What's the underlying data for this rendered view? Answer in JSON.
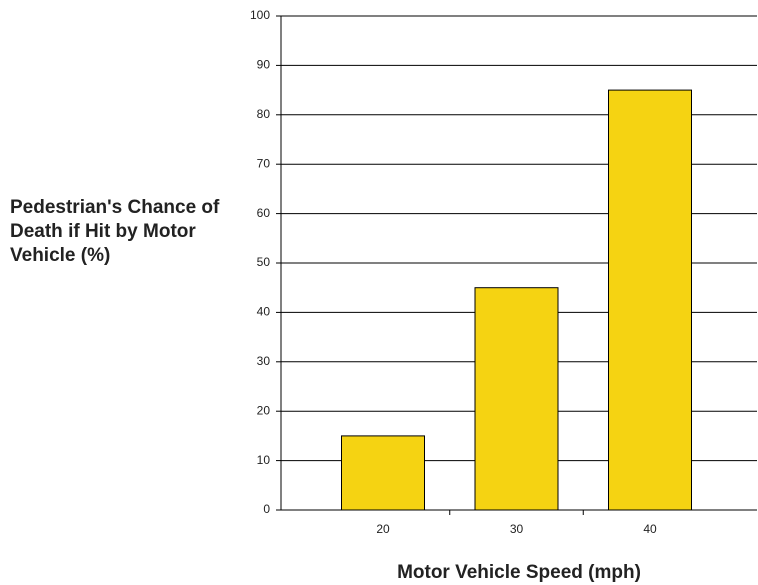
{
  "chart_data": {
    "type": "bar",
    "y_label": "Pedestrian's Chance of Death if Hit by Motor Vehicle (%)",
    "x_label": "Motor Vehicle Speed (mph)",
    "categories": [
      "20",
      "30",
      "40"
    ],
    "values": [
      15,
      45,
      85
    ],
    "color": "#f5d312",
    "ylim": [
      0,
      100
    ],
    "yticks": [
      0,
      10,
      20,
      30,
      40,
      50,
      60,
      70,
      80,
      90,
      100
    ],
    "grid": true
  }
}
